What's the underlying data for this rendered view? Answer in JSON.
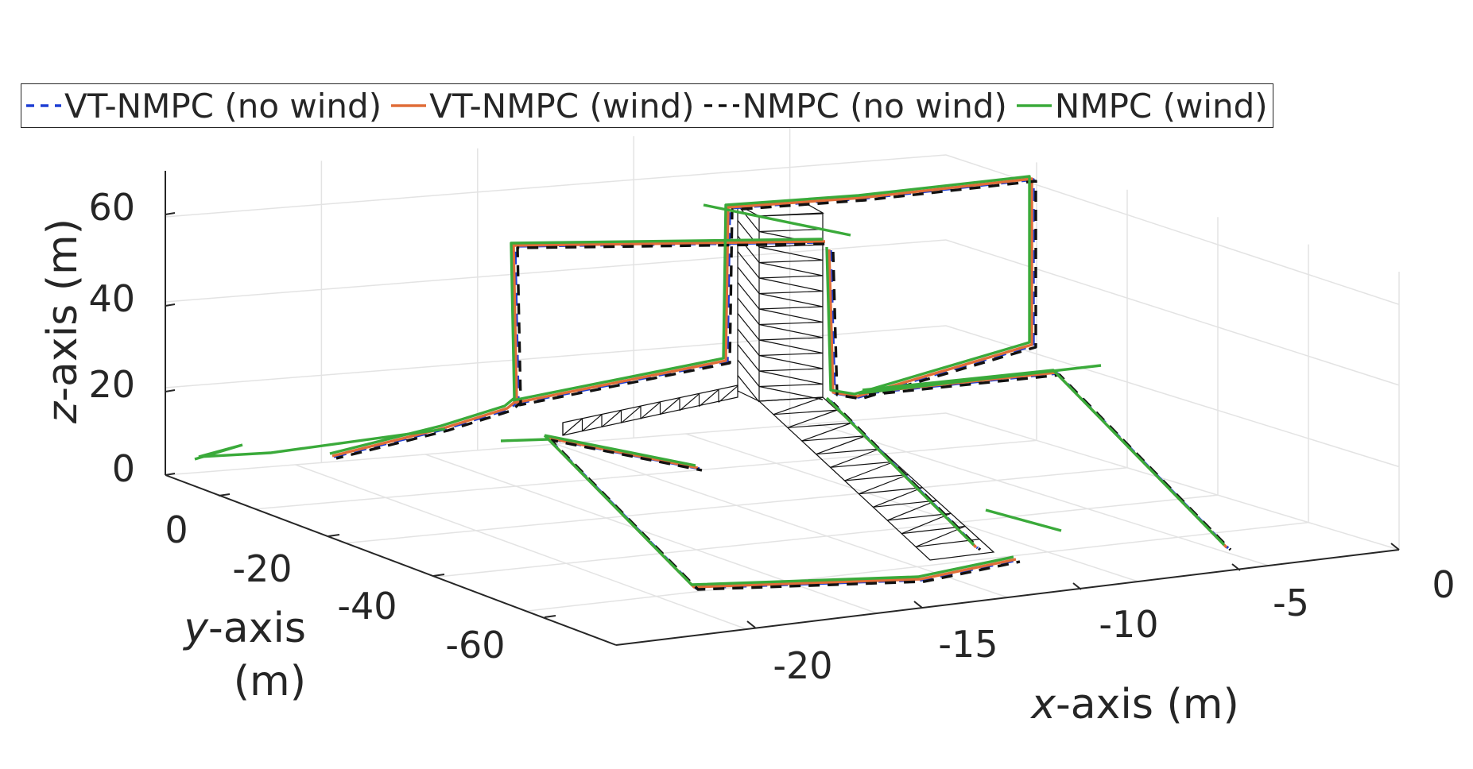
{
  "chart_data": {
    "type": "line",
    "dimensions": 3,
    "title": "",
    "xlabel_var": "x",
    "xlabel_rest": "-axis (m)",
    "ylabel_var": "y",
    "ylabel_rest": "-axis",
    "ylabel_unit": "(m)",
    "zlabel_var": "z",
    "zlabel_rest": "-axis (m)",
    "xlim": [
      -25,
      0
    ],
    "ylim": [
      -70,
      10
    ],
    "zlim": [
      0,
      70
    ],
    "x_ticks": [
      "0",
      "-5",
      "-10",
      "-15",
      "-20"
    ],
    "y_ticks": [
      "0",
      "-20",
      "-40",
      "-60"
    ],
    "z_ticks": [
      "0",
      "20",
      "40",
      "60"
    ],
    "grid": true,
    "legend_position": "top",
    "legend": [
      {
        "name": "VT-NMPC (no wind)",
        "color": "#1f3fd4",
        "style": "dashed"
      },
      {
        "name": "VT-NMPC (wind)",
        "color": "#e06d38",
        "style": "solid"
      },
      {
        "name": "NMPC (no wind)",
        "color": "#111111",
        "style": "dashed"
      },
      {
        "name": "NMPC (wind)",
        "color": "#3aaa3a",
        "style": "solid"
      }
    ]
  }
}
